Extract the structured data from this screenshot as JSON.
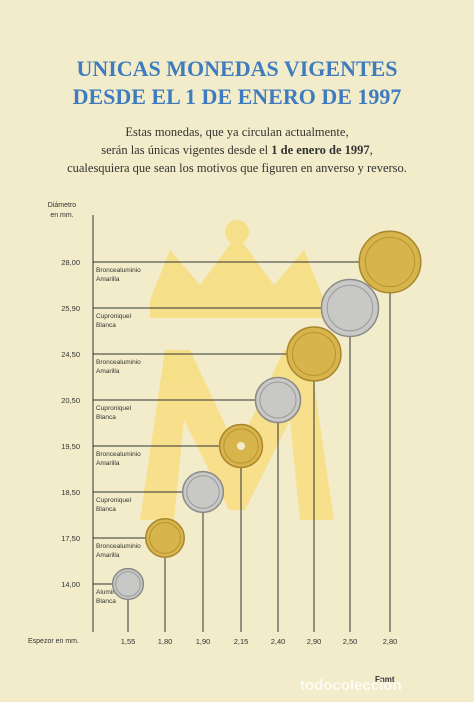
{
  "header": {
    "title_lines": [
      "UNICAS MONEDAS VIGENTES",
      "DESDE EL 1 DE ENERO DE 1997"
    ],
    "intro": [
      "Estas monedas, que ya circulan actualmente,",
      "serán las únicas vigentes desde el ",
      "1 de enero de 1997",
      ",",
      "cualesquiera que sean los motivos que figuren en anverso y reverso."
    ]
  },
  "chart": {
    "y_axis_label": [
      "Diámetro",
      "en mm."
    ],
    "x_axis_label": "Espezor en mm.",
    "rows": [
      {
        "diameter": "28,00",
        "material": [
          "Broncealuminio",
          "Amarilla"
        ],
        "thickness": "2,80"
      },
      {
        "diameter": "25,90",
        "material": [
          "Cuproniquel",
          "Blanca"
        ],
        "thickness": "2,50"
      },
      {
        "diameter": "24,50",
        "material": [
          "Broncealuminio",
          "Amarilla"
        ],
        "thickness": "2,90"
      },
      {
        "diameter": "20,50",
        "material": [
          "Cuproniquel",
          "Blanca"
        ],
        "thickness": "2,40"
      },
      {
        "diameter": "19,50",
        "material": [
          "Broncealuminio",
          "Amarilla"
        ],
        "thickness": "2,15"
      },
      {
        "diameter": "18,50",
        "material": [
          "Cuproniquel",
          "Blanca"
        ],
        "thickness": "1,90"
      },
      {
        "diameter": "17,50",
        "material": [
          "Broncealuminio",
          "Amarilla"
        ],
        "thickness": "1,80"
      },
      {
        "diameter": "14,00",
        "material": [
          "Aluminio",
          "Blanca"
        ],
        "thickness": "1,55"
      }
    ]
  },
  "footer": {
    "logo": "Fnmt",
    "watermark": "todocoleccion"
  }
}
